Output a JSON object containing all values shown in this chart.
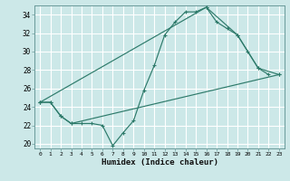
{
  "title": "",
  "xlabel": "Humidex (Indice chaleur)",
  "bg_color": "#cce8e8",
  "grid_color": "#ffffff",
  "line_color": "#2d7a6a",
  "xlim": [
    -0.5,
    23.5
  ],
  "ylim": [
    19.5,
    35.0
  ],
  "xticks": [
    0,
    1,
    2,
    3,
    4,
    5,
    6,
    7,
    8,
    9,
    10,
    11,
    12,
    13,
    14,
    15,
    16,
    17,
    18,
    19,
    20,
    21,
    22,
    23
  ],
  "yticks": [
    20,
    22,
    24,
    26,
    28,
    30,
    32,
    34
  ],
  "series1_x": [
    0,
    1,
    2,
    3,
    4,
    5,
    6,
    7,
    8,
    9,
    10,
    11,
    12,
    13,
    14,
    15,
    16,
    17,
    18,
    19,
    20,
    21,
    22
  ],
  "series1_y": [
    24.5,
    24.5,
    23.0,
    22.2,
    22.2,
    22.2,
    22.0,
    19.8,
    21.2,
    22.5,
    25.8,
    28.5,
    31.8,
    33.2,
    34.3,
    34.3,
    34.8,
    33.2,
    32.5,
    31.8,
    30.0,
    28.2,
    27.5
  ],
  "series2_x": [
    0,
    1,
    2,
    3,
    23
  ],
  "series2_y": [
    24.5,
    24.5,
    23.0,
    22.2,
    27.5
  ],
  "series3_x": [
    0,
    16,
    19,
    21,
    23
  ],
  "series3_y": [
    24.5,
    34.8,
    31.8,
    28.2,
    27.5
  ]
}
